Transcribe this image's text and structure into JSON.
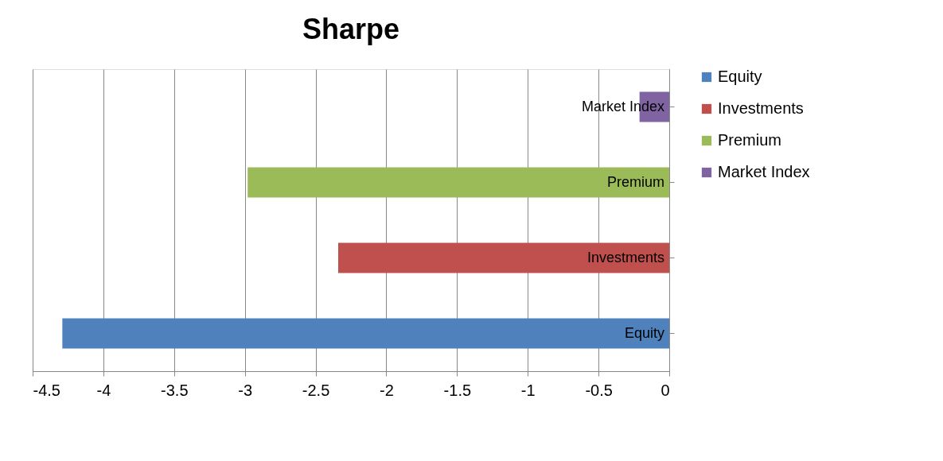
{
  "chart_data": {
    "type": "bar",
    "title": "Sharpe",
    "orientation": "horizontal",
    "categories": [
      null,
      null,
      null,
      null
    ],
    "series": [
      {
        "name": "Equity",
        "color": "#4f81bd",
        "values": [
          null,
          null,
          null,
          -4.29
        ]
      },
      {
        "name": "Investments",
        "color": "#c0504d",
        "values": [
          null,
          null,
          -2.34,
          null
        ]
      },
      {
        "name": "Premium",
        "color": "#9bbb59",
        "values": [
          null,
          -2.98,
          null,
          null
        ]
      },
      {
        "name": "Market Index",
        "color": "#8064a2",
        "values": [
          -0.21,
          null,
          null,
          null
        ]
      }
    ],
    "xlim": [
      -4.5,
      0
    ],
    "xticks": [
      -4.5,
      -4,
      -3.5,
      -3,
      -2.5,
      -2,
      -1.5,
      -1,
      -0.5,
      0
    ],
    "grid": "x",
    "legend": "right",
    "tick_labels": "x"
  }
}
